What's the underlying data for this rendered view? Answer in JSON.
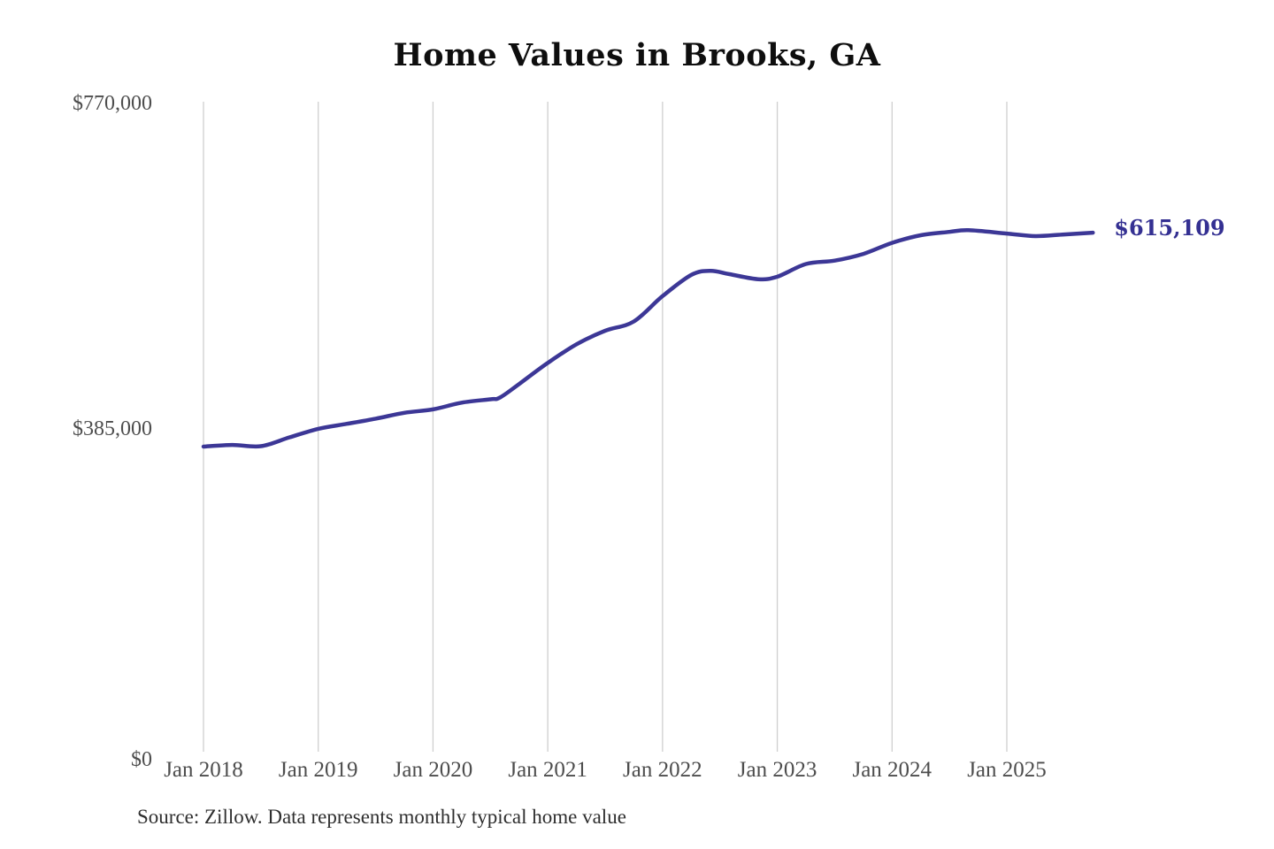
{
  "page": {
    "background": "#ffffff"
  },
  "title": "Home Values in Brooks, GA",
  "source_note": "Source: Zillow. Data represents monthly typical home value",
  "end_label": "$615,109",
  "axes": {
    "y_ticks": [
      {
        "label": "$770,000",
        "value": 770000
      },
      {
        "label": "$385,000",
        "value": 385000
      },
      {
        "label": "$0",
        "value": 0
      }
    ],
    "x_ticks": [
      "Jan 2018",
      "Jan 2019",
      "Jan 2020",
      "Jan 2021",
      "Jan 2022",
      "Jan 2023",
      "Jan 2024",
      "Jan 2025"
    ]
  },
  "colors": {
    "line": "#3c3796",
    "annotation": "#343092",
    "gridline": "#cfcfcf",
    "tick_text": "#4d4d4d",
    "title_text": "#0e0e0e",
    "source_text": "#2e2e2e"
  },
  "chart_data": {
    "type": "line",
    "title": "Home Values in Brooks, GA",
    "xlabel": "",
    "ylabel": "",
    "series_name": "Monthly typical home value",
    "ylim": [
      0,
      770000
    ],
    "y_tick_values": [
      0,
      385000,
      770000
    ],
    "x_range": [
      "Jan 2018",
      "Oct 2025"
    ],
    "grid": "vertical-only",
    "legend": "none",
    "line_color": "#3c3796",
    "final_value": 615109,
    "final_value_label": "$615,109",
    "points": [
      {
        "month": "Jan 2018",
        "value": 362000
      },
      {
        "month": "Apr 2018",
        "value": 364000
      },
      {
        "month": "Jul 2018",
        "value": 362500
      },
      {
        "month": "Oct 2018",
        "value": 373000
      },
      {
        "month": "Jan 2019",
        "value": 383000
      },
      {
        "month": "Apr 2019",
        "value": 389000
      },
      {
        "month": "Jul 2019",
        "value": 395000
      },
      {
        "month": "Oct 2019",
        "value": 402000
      },
      {
        "month": "Jan 2020",
        "value": 406000
      },
      {
        "month": "Apr 2020",
        "value": 414000
      },
      {
        "month": "Jul 2020",
        "value": 418000
      },
      {
        "month": "Aug 2020",
        "value": 420000
      },
      {
        "month": "Oct 2020",
        "value": 436000
      },
      {
        "month": "Jan 2021",
        "value": 461000
      },
      {
        "month": "Apr 2021",
        "value": 483000
      },
      {
        "month": "Jul 2021",
        "value": 499000
      },
      {
        "month": "Oct 2021",
        "value": 510000
      },
      {
        "month": "Jan 2022",
        "value": 540000
      },
      {
        "month": "Apr 2022",
        "value": 565000
      },
      {
        "month": "Jun 2022",
        "value": 570000
      },
      {
        "month": "Aug 2022",
        "value": 566000
      },
      {
        "month": "Nov 2022",
        "value": 560000
      },
      {
        "month": "Jan 2023",
        "value": 563000
      },
      {
        "month": "Apr 2023",
        "value": 578000
      },
      {
        "month": "Jul 2023",
        "value": 582000
      },
      {
        "month": "Oct 2023",
        "value": 590000
      },
      {
        "month": "Jan 2024",
        "value": 603000
      },
      {
        "month": "Apr 2024",
        "value": 612000
      },
      {
        "month": "Jul 2024",
        "value": 616000
      },
      {
        "month": "Sep 2024",
        "value": 618000
      },
      {
        "month": "Jan 2025",
        "value": 614000
      },
      {
        "month": "Apr 2025",
        "value": 611000
      },
      {
        "month": "Jul 2025",
        "value": 613000
      },
      {
        "month": "Oct 2025",
        "value": 615109
      }
    ]
  }
}
